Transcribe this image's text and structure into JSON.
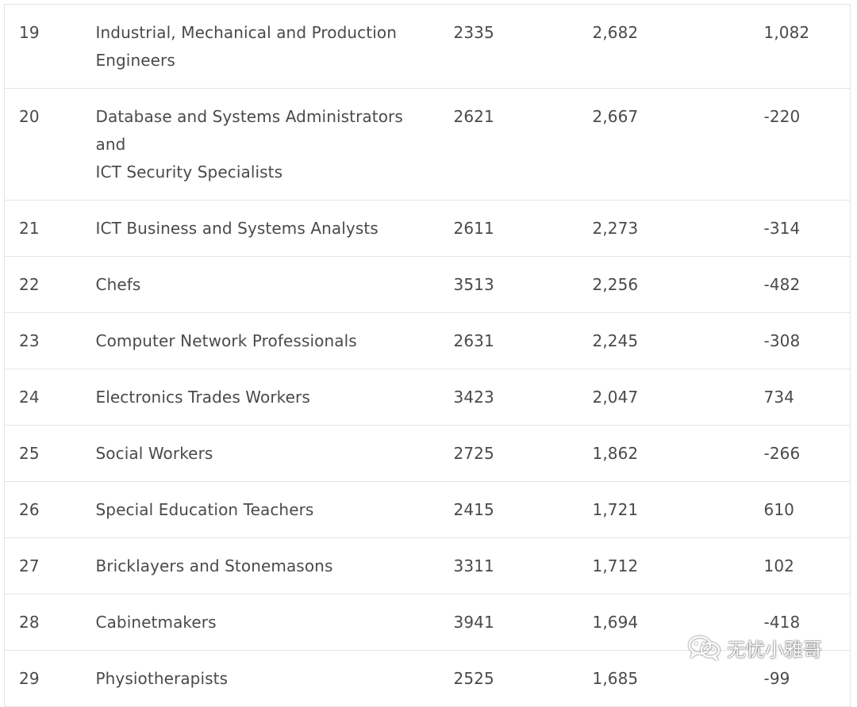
{
  "table": {
    "rows": [
      {
        "rank": "19",
        "occupation_lines": [
          "Industrial, Mechanical and Production",
          "Engineers"
        ],
        "code": "2335",
        "count": "2,682",
        "change": "1,082"
      },
      {
        "rank": "20",
        "occupation_lines": [
          "Database and Systems Administrators and",
          "ICT Security Specialists"
        ],
        "code": "2621",
        "count": "2,667",
        "change": "-220"
      },
      {
        "rank": "21",
        "occupation_lines": [
          "ICT Business and Systems Analysts"
        ],
        "code": "2611",
        "count": "2,273",
        "change": "-314"
      },
      {
        "rank": "22",
        "occupation_lines": [
          "Chefs"
        ],
        "code": "3513",
        "count": "2,256",
        "change": "-482"
      },
      {
        "rank": "23",
        "occupation_lines": [
          "Computer Network Professionals"
        ],
        "code": "2631",
        "count": "2,245",
        "change": "-308"
      },
      {
        "rank": "24",
        "occupation_lines": [
          "Electronics Trades Workers"
        ],
        "code": "3423",
        "count": "2,047",
        "change": "734"
      },
      {
        "rank": "25",
        "occupation_lines": [
          "Social Workers"
        ],
        "code": "2725",
        "count": "1,862",
        "change": "-266"
      },
      {
        "rank": "26",
        "occupation_lines": [
          "Special Education Teachers"
        ],
        "code": "2415",
        "count": "1,721",
        "change": "610"
      },
      {
        "rank": "27",
        "occupation_lines": [
          "Bricklayers and Stonemasons"
        ],
        "code": "3311",
        "count": "1,712",
        "change": "102"
      },
      {
        "rank": "28",
        "occupation_lines": [
          "Cabinetmakers"
        ],
        "code": "3941",
        "count": "1,694",
        "change": "-418"
      },
      {
        "rank": "29",
        "occupation_lines": [
          "Physiotherapists"
        ],
        "code": "2525",
        "count": "1,685",
        "change": "-99"
      }
    ]
  },
  "watermark": {
    "text": "无忧小雅哥",
    "icon": "wechat-icon"
  }
}
